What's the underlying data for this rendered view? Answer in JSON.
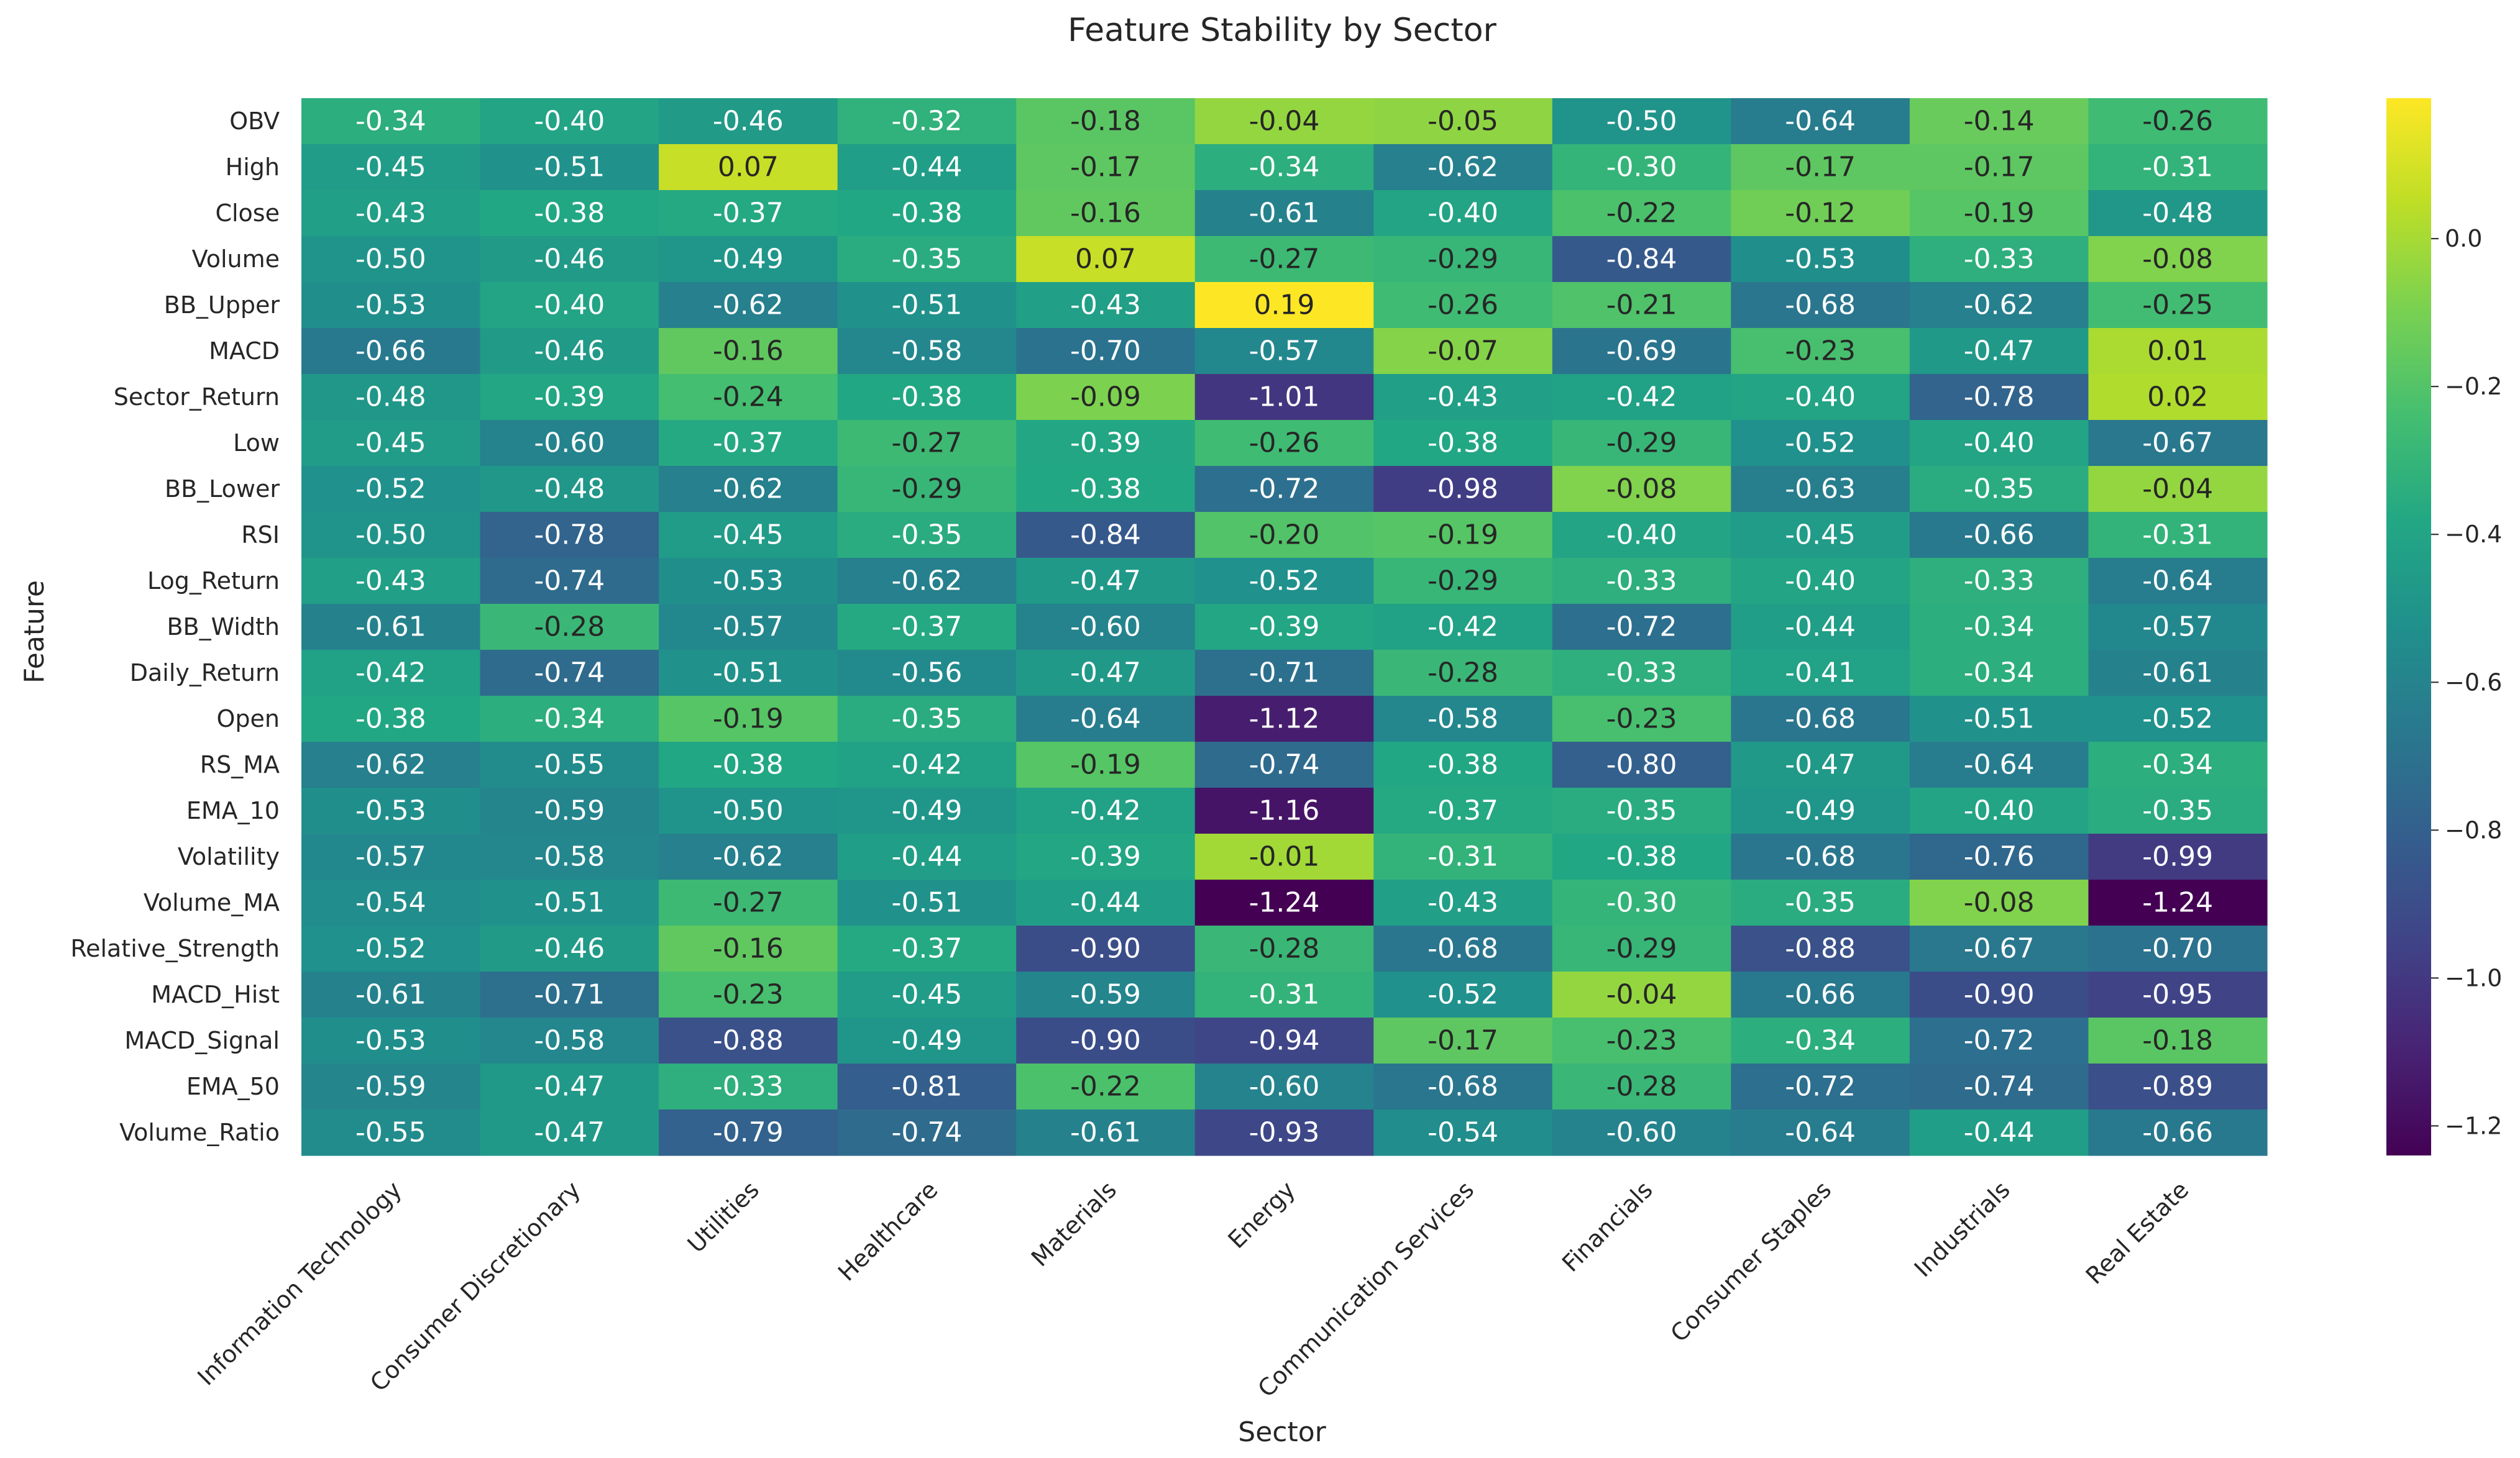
{
  "chart_data": {
    "type": "heatmap",
    "title": "Feature Stability by Sector",
    "xlabel": "Sector",
    "ylabel": "Feature",
    "x_categories": [
      "Information Technology",
      "Consumer Discretionary",
      "Utilities",
      "Healthcare",
      "Materials",
      "Energy",
      "Communication Services",
      "Financials",
      "Consumer Staples",
      "Industrials",
      "Real Estate"
    ],
    "y_categories": [
      "OBV",
      "High",
      "Close",
      "Volume",
      "BB_Upper",
      "MACD",
      "Sector_Return",
      "Low",
      "BB_Lower",
      "RSI",
      "Log_Return",
      "BB_Width",
      "Daily_Return",
      "Open",
      "RS_MA",
      "EMA_10",
      "Volatility",
      "Volume_MA",
      "Relative_Strength",
      "MACD_Hist",
      "MACD_Signal",
      "EMA_50",
      "Volume_Ratio"
    ],
    "values": [
      [
        -0.34,
        -0.4,
        -0.46,
        -0.32,
        -0.18,
        -0.04,
        -0.05,
        -0.5,
        -0.64,
        -0.14,
        -0.26
      ],
      [
        -0.45,
        -0.51,
        0.07,
        -0.44,
        -0.17,
        -0.34,
        -0.62,
        -0.3,
        -0.17,
        -0.17,
        -0.31
      ],
      [
        -0.43,
        -0.38,
        -0.37,
        -0.38,
        -0.16,
        -0.61,
        -0.4,
        -0.22,
        -0.12,
        -0.19,
        -0.48
      ],
      [
        -0.5,
        -0.46,
        -0.49,
        -0.35,
        0.07,
        -0.27,
        -0.29,
        -0.84,
        -0.53,
        -0.33,
        -0.08
      ],
      [
        -0.53,
        -0.4,
        -0.62,
        -0.51,
        -0.43,
        0.19,
        -0.26,
        -0.21,
        -0.68,
        -0.62,
        -0.25
      ],
      [
        -0.66,
        -0.46,
        -0.16,
        -0.58,
        -0.7,
        -0.57,
        -0.07,
        -0.69,
        -0.23,
        -0.47,
        0.01
      ],
      [
        -0.48,
        -0.39,
        -0.24,
        -0.38,
        -0.09,
        -1.01,
        -0.43,
        -0.42,
        -0.4,
        -0.78,
        0.02
      ],
      [
        -0.45,
        -0.6,
        -0.37,
        -0.27,
        -0.39,
        -0.26,
        -0.38,
        -0.29,
        -0.52,
        -0.4,
        -0.67
      ],
      [
        -0.52,
        -0.48,
        -0.62,
        -0.29,
        -0.38,
        -0.72,
        -0.98,
        -0.08,
        -0.63,
        -0.35,
        -0.04
      ],
      [
        -0.5,
        -0.78,
        -0.45,
        -0.35,
        -0.84,
        -0.2,
        -0.19,
        -0.4,
        -0.45,
        -0.66,
        -0.31
      ],
      [
        -0.43,
        -0.74,
        -0.53,
        -0.62,
        -0.47,
        -0.52,
        -0.29,
        -0.33,
        -0.4,
        -0.33,
        -0.64
      ],
      [
        -0.61,
        -0.28,
        -0.57,
        -0.37,
        -0.6,
        -0.39,
        -0.42,
        -0.72,
        -0.44,
        -0.34,
        -0.57
      ],
      [
        -0.42,
        -0.74,
        -0.51,
        -0.56,
        -0.47,
        -0.71,
        -0.28,
        -0.33,
        -0.41,
        -0.34,
        -0.61
      ],
      [
        -0.38,
        -0.34,
        -0.19,
        -0.35,
        -0.64,
        -1.12,
        -0.58,
        -0.23,
        -0.68,
        -0.51,
        -0.52
      ],
      [
        -0.62,
        -0.55,
        -0.38,
        -0.42,
        -0.19,
        -0.74,
        -0.38,
        -0.8,
        -0.47,
        -0.64,
        -0.34
      ],
      [
        -0.53,
        -0.59,
        -0.5,
        -0.49,
        -0.42,
        -1.16,
        -0.37,
        -0.35,
        -0.49,
        -0.4,
        -0.35
      ],
      [
        -0.57,
        -0.58,
        -0.62,
        -0.44,
        -0.39,
        -0.01,
        -0.31,
        -0.38,
        -0.68,
        -0.76,
        -0.99
      ],
      [
        -0.54,
        -0.51,
        -0.27,
        -0.51,
        -0.44,
        -1.24,
        -0.43,
        -0.3,
        -0.35,
        -0.08,
        -1.24
      ],
      [
        -0.52,
        -0.46,
        -0.16,
        -0.37,
        -0.9,
        -0.28,
        -0.68,
        -0.29,
        -0.88,
        -0.67,
        -0.7
      ],
      [
        -0.61,
        -0.71,
        -0.23,
        -0.45,
        -0.59,
        -0.31,
        -0.52,
        -0.04,
        -0.66,
        -0.9,
        -0.95
      ],
      [
        -0.53,
        -0.58,
        -0.88,
        -0.49,
        -0.9,
        -0.94,
        -0.17,
        -0.23,
        -0.34,
        -0.72,
        -0.18
      ],
      [
        -0.59,
        -0.47,
        -0.33,
        -0.81,
        -0.22,
        -0.6,
        -0.68,
        -0.28,
        -0.72,
        -0.74,
        -0.89
      ],
      [
        -0.55,
        -0.47,
        -0.79,
        -0.74,
        -0.61,
        -0.93,
        -0.54,
        -0.6,
        -0.64,
        -0.44,
        -0.66
      ]
    ],
    "value_range": [
      -1.24,
      0.19
    ],
    "colormap": "viridis",
    "colorbar_ticks": [
      0.0,
      -0.2,
      -0.4,
      -0.6,
      -0.8,
      -1.0,
      -1.2
    ],
    "colorbar_tick_labels": [
      "0.0",
      "−0.2",
      "−0.4",
      "−0.6",
      "−0.8",
      "−1.0",
      "−1.2"
    ],
    "grid": false,
    "legend": "colorbar-right"
  }
}
